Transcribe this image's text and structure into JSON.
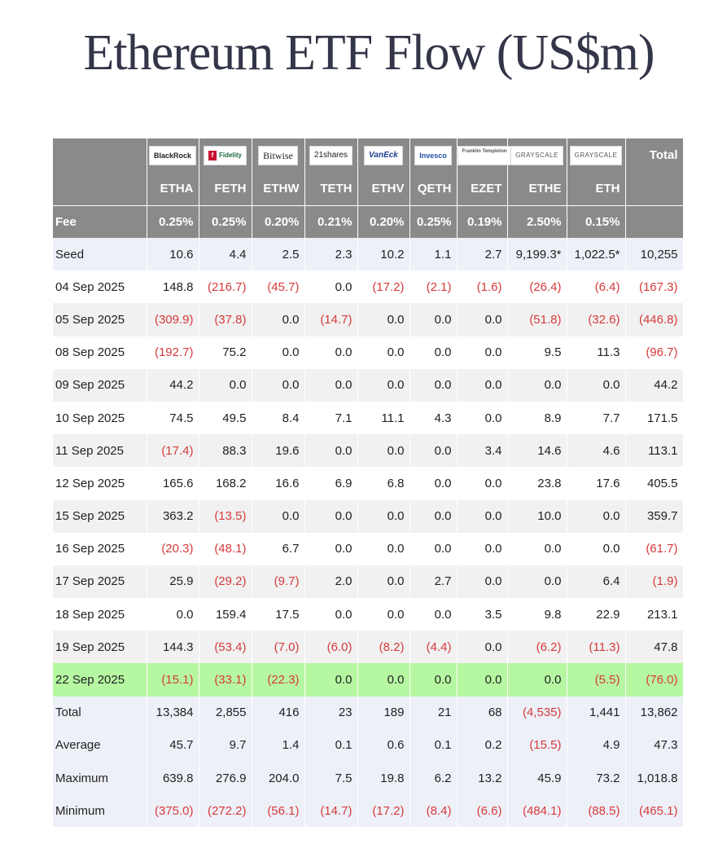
{
  "title": "Ethereum ETF Flow (US$m)",
  "colors": {
    "header_bg": "#8a8a8a",
    "negative": "#d63a3a",
    "highlight_row": "#b6f7a2",
    "seed_row": "#eef0f8"
  },
  "header": {
    "logos": [
      "BlackRock",
      "Fidelity",
      "Bitwise",
      "21shares",
      "VanEck",
      "Invesco",
      "Franklin Templeton",
      "GRAYSCALE",
      "GRAYSCALE"
    ],
    "total_label": "Total",
    "tickers": [
      "ETHA",
      "FETH",
      "ETHW",
      "TETH",
      "ETHV",
      "QETH",
      "EZET",
      "ETHE",
      "ETH"
    ],
    "fee_label": "Fee",
    "fees": [
      "0.25%",
      "0.25%",
      "0.20%",
      "0.21%",
      "0.20%",
      "0.25%",
      "0.19%",
      "2.50%",
      "0.15%"
    ]
  },
  "rows": [
    {
      "label": "Seed",
      "values": [
        "10.6",
        "4.4",
        "2.5",
        "2.3",
        "10.2",
        "1.1",
        "2.7",
        "9,199.3*",
        "1,022.5*",
        "10,255"
      ]
    },
    {
      "label": "04 Sep 2025",
      "values": [
        "148.8",
        "(216.7)",
        "(45.7)",
        "0.0",
        "(17.2)",
        "(2.1)",
        "(1.6)",
        "(26.4)",
        "(6.4)",
        "(167.3)"
      ]
    },
    {
      "label": "05 Sep 2025",
      "values": [
        "(309.9)",
        "(37.8)",
        "0.0",
        "(14.7)",
        "0.0",
        "0.0",
        "0.0",
        "(51.8)",
        "(32.6)",
        "(446.8)"
      ]
    },
    {
      "label": "08 Sep 2025",
      "values": [
        "(192.7)",
        "75.2",
        "0.0",
        "0.0",
        "0.0",
        "0.0",
        "0.0",
        "9.5",
        "11.3",
        "(96.7)"
      ]
    },
    {
      "label": "09 Sep 2025",
      "values": [
        "44.2",
        "0.0",
        "0.0",
        "0.0",
        "0.0",
        "0.0",
        "0.0",
        "0.0",
        "0.0",
        "44.2"
      ]
    },
    {
      "label": "10 Sep 2025",
      "values": [
        "74.5",
        "49.5",
        "8.4",
        "7.1",
        "11.1",
        "4.3",
        "0.0",
        "8.9",
        "7.7",
        "171.5"
      ]
    },
    {
      "label": "11 Sep 2025",
      "values": [
        "(17.4)",
        "88.3",
        "19.6",
        "0.0",
        "0.0",
        "0.0",
        "3.4",
        "14.6",
        "4.6",
        "113.1"
      ]
    },
    {
      "label": "12 Sep 2025",
      "values": [
        "165.6",
        "168.2",
        "16.6",
        "6.9",
        "6.8",
        "0.0",
        "0.0",
        "23.8",
        "17.6",
        "405.5"
      ]
    },
    {
      "label": "15 Sep 2025",
      "values": [
        "363.2",
        "(13.5)",
        "0.0",
        "0.0",
        "0.0",
        "0.0",
        "0.0",
        "10.0",
        "0.0",
        "359.7"
      ]
    },
    {
      "label": "16 Sep 2025",
      "values": [
        "(20.3)",
        "(48.1)",
        "6.7",
        "0.0",
        "0.0",
        "0.0",
        "0.0",
        "0.0",
        "0.0",
        "(61.7)"
      ]
    },
    {
      "label": "17 Sep 2025",
      "values": [
        "25.9",
        "(29.2)",
        "(9.7)",
        "2.0",
        "0.0",
        "2.7",
        "0.0",
        "0.0",
        "6.4",
        "(1.9)"
      ]
    },
    {
      "label": "18 Sep 2025",
      "values": [
        "0.0",
        "159.4",
        "17.5",
        "0.0",
        "0.0",
        "0.0",
        "3.5",
        "9.8",
        "22.9",
        "213.1"
      ]
    },
    {
      "label": "19 Sep 2025",
      "values": [
        "144.3",
        "(53.4)",
        "(7.0)",
        "(6.0)",
        "(8.2)",
        "(4.4)",
        "0.0",
        "(6.2)",
        "(11.3)",
        "47.8"
      ]
    },
    {
      "label": "22 Sep 2025",
      "values": [
        "(15.1)",
        "(33.1)",
        "(22.3)",
        "0.0",
        "0.0",
        "0.0",
        "0.0",
        "0.0",
        "(5.5)",
        "(76.0)"
      ]
    }
  ],
  "summary": [
    {
      "label": "Total",
      "values": [
        "13,384",
        "2,855",
        "416",
        "23",
        "189",
        "21",
        "68",
        "(4,535)",
        "1,441",
        "13,862"
      ]
    },
    {
      "label": "Average",
      "values": [
        "45.7",
        "9.7",
        "1.4",
        "0.1",
        "0.6",
        "0.1",
        "0.2",
        "(15.5)",
        "4.9",
        "47.3"
      ]
    },
    {
      "label": "Maximum",
      "values": [
        "639.8",
        "276.9",
        "204.0",
        "7.5",
        "19.8",
        "6.2",
        "13.2",
        "45.9",
        "73.2",
        "1,018.8"
      ]
    },
    {
      "label": "Minimum",
      "values": [
        "(375.0)",
        "(272.2)",
        "(56.1)",
        "(14.7)",
        "(17.2)",
        "(8.4)",
        "(6.6)",
        "(484.1)",
        "(88.5)",
        "(465.1)"
      ]
    }
  ]
}
